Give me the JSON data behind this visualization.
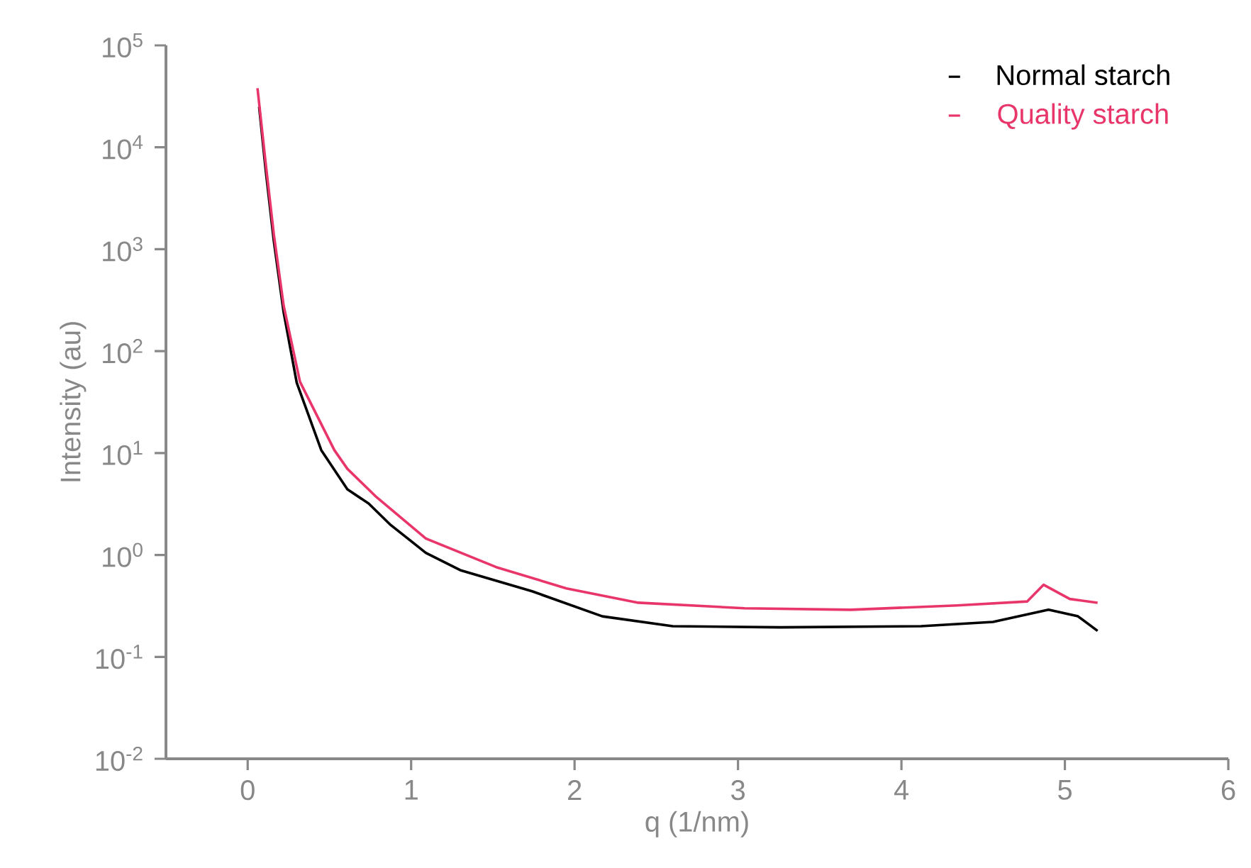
{
  "chart_data": {
    "type": "line",
    "xlabel": "q (1/nm)",
    "ylabel": "Intensity (au)",
    "log": "y",
    "xlim": [
      -0.5,
      6
    ],
    "xticks": [
      0,
      1,
      2,
      3,
      4,
      5,
      6
    ],
    "ylim": [
      0.01,
      100000
    ],
    "yticks": [
      {
        "value": 0.01,
        "label": "10$^{-2}$"
      },
      {
        "value": 0.1,
        "label": "10$^{-1}$"
      },
      {
        "value": 1,
        "label": "10$^{0}$"
      },
      {
        "value": 10,
        "label": "10$^{1}$"
      },
      {
        "value": 100,
        "label": "10$^{2}$"
      },
      {
        "value": 1000,
        "label": "10$^{3}$"
      },
      {
        "value": 10000,
        "label": "10$^{4}$"
      },
      {
        "value": 100000,
        "label": "10$^{5}$"
      }
    ],
    "grid": false,
    "legend": "top right",
    "marker": "none",
    "line_style": "solid",
    "series": [
      {
        "name": "Normal starch",
        "color": "#000000",
        "x": [
          0.07,
          0.11,
          0.16,
          0.22,
          0.3,
          0.45,
          0.61,
          0.74,
          0.87,
          1.09,
          1.3,
          1.74,
          2.17,
          2.6,
          3.26,
          4.12,
          4.56,
          4.9,
          5.08,
          5.2
        ],
        "values": [
          25000,
          6000,
          1200,
          240,
          49,
          10.7,
          4.4,
          3.2,
          2.0,
          1.05,
          0.71,
          0.44,
          0.25,
          0.2,
          0.195,
          0.2,
          0.22,
          0.29,
          0.25,
          0.18
        ]
      },
      {
        "name": "Quality  starch",
        "color": "#e8366a",
        "x": [
          0.06,
          0.11,
          0.16,
          0.22,
          0.32,
          0.53,
          0.61,
          0.78,
          1.09,
          1.52,
          1.95,
          2.39,
          3.04,
          3.69,
          4.34,
          4.77,
          4.87,
          5.03,
          5.2
        ],
        "values": [
          38000,
          7000,
          1400,
          280,
          50,
          10.7,
          7.0,
          3.8,
          1.45,
          0.76,
          0.47,
          0.34,
          0.3,
          0.29,
          0.32,
          0.35,
          0.51,
          0.37,
          0.34
        ]
      }
    ]
  }
}
